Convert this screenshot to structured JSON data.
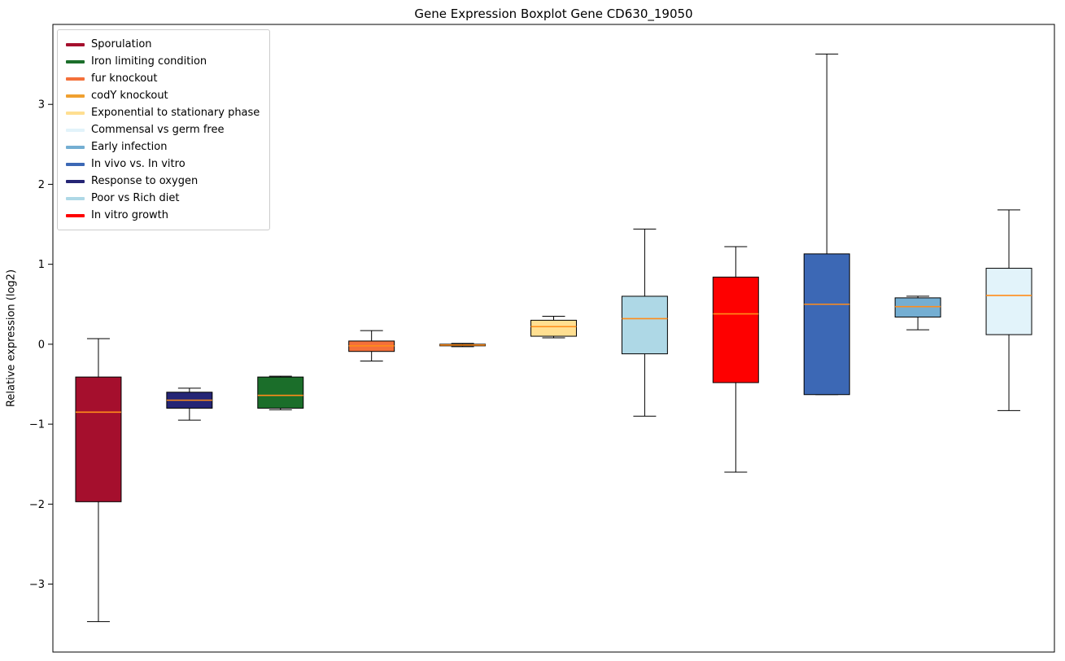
{
  "chart_data": {
    "type": "boxplot",
    "title": "Gene Expression Boxplot Gene CD630_19050",
    "xlabel": "",
    "ylabel": "Relative expression (log2)",
    "ylim": [
      -3.85,
      4.0
    ],
    "yticks": [
      -3,
      -2,
      -1,
      0,
      1,
      2,
      3
    ],
    "grid": false,
    "legend_position": "upper left",
    "median_color": "#ff8c1a",
    "box_edge_color": "#000000",
    "series": [
      {
        "name": "Sporulation",
        "color": "#a50f2d",
        "whisker_low": -3.47,
        "q1": -1.97,
        "median": -0.85,
        "q3": -0.41,
        "whisker_high": 0.07
      },
      {
        "name": "Response to oxygen",
        "color": "#252575",
        "whisker_low": -0.95,
        "q1": -0.8,
        "median": -0.7,
        "q3": -0.6,
        "whisker_high": -0.55
      },
      {
        "name": "Iron limiting condition",
        "color": "#1b6e2a",
        "whisker_low": -0.82,
        "q1": -0.8,
        "median": -0.64,
        "q3": -0.41,
        "whisker_high": -0.4
      },
      {
        "name": "fur knockout",
        "color": "#f4703a",
        "whisker_low": -0.21,
        "q1": -0.09,
        "median": -0.02,
        "q3": 0.04,
        "whisker_high": 0.17
      },
      {
        "name": "codY knockout",
        "color": "#f0a030",
        "whisker_low": -0.03,
        "q1": -0.02,
        "median": -0.01,
        "q3": 0.0,
        "whisker_high": 0.01
      },
      {
        "name": "Exponential to stationary phase",
        "color": "#ffdf91",
        "whisker_low": 0.08,
        "q1": 0.1,
        "median": 0.22,
        "q3": 0.3,
        "whisker_high": 0.35
      },
      {
        "name": "Poor vs Rich diet",
        "color": "#aed8e6",
        "whisker_low": -0.9,
        "q1": -0.12,
        "median": 0.32,
        "q3": 0.6,
        "whisker_high": 1.44
      },
      {
        "name": "In vitro growth",
        "color": "#fe0000",
        "whisker_low": -1.6,
        "q1": -0.48,
        "median": 0.38,
        "q3": 0.84,
        "whisker_high": 1.22
      },
      {
        "name": "In vivo vs. In vitro",
        "color": "#3c68b5",
        "whisker_low": -0.63,
        "q1": -0.63,
        "median": 0.5,
        "q3": 1.13,
        "whisker_high": 3.63
      },
      {
        "name": "Early infection",
        "color": "#74aed2",
        "whisker_low": 0.18,
        "q1": 0.34,
        "median": 0.47,
        "q3": 0.58,
        "whisker_high": 0.6
      },
      {
        "name": "Commensal vs germ free",
        "color": "#e2f3fa",
        "whisker_low": -0.83,
        "q1": 0.12,
        "median": 0.61,
        "q3": 0.95,
        "whisker_high": 1.68
      }
    ],
    "legend": [
      {
        "label": "Sporulation",
        "color": "#a50f2d"
      },
      {
        "label": "Iron limiting condition",
        "color": "#1b6e2a"
      },
      {
        "label": "fur knockout",
        "color": "#f4703a"
      },
      {
        "label": "codY knockout",
        "color": "#f0a030"
      },
      {
        "label": "Exponential to stationary phase",
        "color": "#ffdf91"
      },
      {
        "label": "Commensal vs germ free",
        "color": "#e2f3fa"
      },
      {
        "label": "Early infection",
        "color": "#74aed2"
      },
      {
        "label": "In vivo vs. In vitro",
        "color": "#3c68b5"
      },
      {
        "label": "Response to oxygen",
        "color": "#252575"
      },
      {
        "label": "Poor vs Rich diet",
        "color": "#aed8e6"
      },
      {
        "label": "In vitro growth",
        "color": "#fe0000"
      }
    ]
  }
}
